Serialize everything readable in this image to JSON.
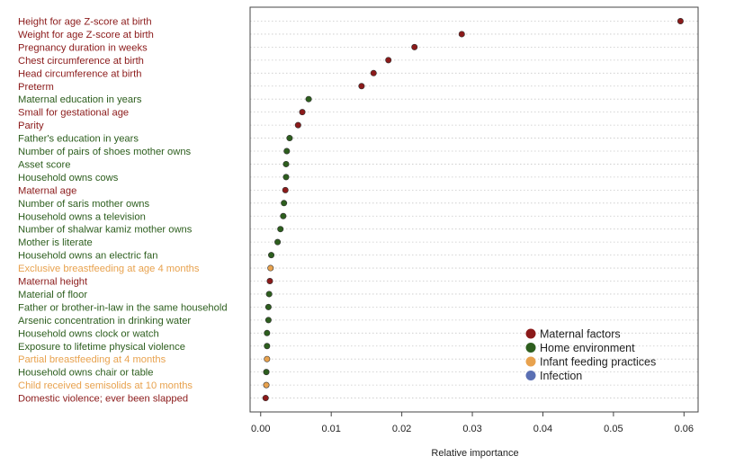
{
  "chart_data": {
    "type": "scatter",
    "title": "",
    "xlabel": "Relative importance",
    "ylabel": "",
    "xlim": [
      -0.0015,
      0.062
    ],
    "xticks": [
      0.0,
      0.01,
      0.02,
      0.03,
      0.04,
      0.05,
      0.06
    ],
    "xtick_labels": [
      "0.00",
      "0.01",
      "0.02",
      "0.03",
      "0.04",
      "0.05",
      "0.06"
    ],
    "grid": "horizontal dotted",
    "legend_position": "bottom-right",
    "colors": {
      "maternal": "#8b1a1a",
      "home": "#2d5e1e",
      "feeding": "#e8a24e",
      "infection": "#5a6fb3",
      "grid": "#c8c8c8",
      "axis": "#444444"
    },
    "legend": [
      {
        "key": "maternal",
        "label": "Maternal factors"
      },
      {
        "key": "home",
        "label": "Home environment"
      },
      {
        "key": "feeding",
        "label": "Infant feeding practices"
      },
      {
        "key": "infection",
        "label": "Infection"
      }
    ],
    "points": [
      {
        "label": "Height for age Z-score at birth",
        "value": 0.0595,
        "group": "maternal"
      },
      {
        "label": "Weight for age Z-score at birth",
        "value": 0.0285,
        "group": "maternal"
      },
      {
        "label": "Pregnancy duration in weeks",
        "value": 0.0218,
        "group": "maternal"
      },
      {
        "label": "Chest circumference at birth",
        "value": 0.0181,
        "group": "maternal"
      },
      {
        "label": "Head circumference at birth",
        "value": 0.016,
        "group": "maternal"
      },
      {
        "label": "Preterm",
        "value": 0.0143,
        "group": "maternal"
      },
      {
        "label": "Maternal education in years",
        "value": 0.0068,
        "group": "home"
      },
      {
        "label": "Small for gestational age",
        "value": 0.0059,
        "group": "maternal"
      },
      {
        "label": "Parity",
        "value": 0.0053,
        "group": "maternal"
      },
      {
        "label": "Father's education in years",
        "value": 0.0041,
        "group": "home"
      },
      {
        "label": "Number of pairs of shoes mother owns",
        "value": 0.0037,
        "group": "home"
      },
      {
        "label": "Asset score",
        "value": 0.0036,
        "group": "home"
      },
      {
        "label": "Household owns cows",
        "value": 0.0036,
        "group": "home"
      },
      {
        "label": "Maternal age",
        "value": 0.0035,
        "group": "maternal"
      },
      {
        "label": "Number of saris mother owns",
        "value": 0.0033,
        "group": "home"
      },
      {
        "label": "Household owns a television",
        "value": 0.0032,
        "group": "home"
      },
      {
        "label": "Number of shalwar  kamiz mother owns",
        "value": 0.0028,
        "group": "home"
      },
      {
        "label": "Mother is literate",
        "value": 0.0024,
        "group": "home"
      },
      {
        "label": "Household owns an electric fan",
        "value": 0.0015,
        "group": "home"
      },
      {
        "label": "Exclusive breastfeeding at age 4 months",
        "value": 0.0014,
        "group": "feeding"
      },
      {
        "label": "Maternal height",
        "value": 0.0013,
        "group": "maternal"
      },
      {
        "label": "Material of floor",
        "value": 0.0012,
        "group": "home"
      },
      {
        "label": "Father or brother-in-law in the same household",
        "value": 0.0011,
        "group": "home"
      },
      {
        "label": "Arsenic concentration in drinking water",
        "value": 0.0011,
        "group": "home"
      },
      {
        "label": "Household owns clock or watch",
        "value": 0.0009,
        "group": "home"
      },
      {
        "label": "Exposure to lifetime physical violence",
        "value": 0.0009,
        "group": "home"
      },
      {
        "label": "Partial breastfeeding at 4 months",
        "value": 0.0009,
        "group": "feeding"
      },
      {
        "label": "Household owns chair or table",
        "value": 0.0008,
        "group": "home"
      },
      {
        "label": "Child received semisolids at 10 months",
        "value": 0.0008,
        "group": "feeding"
      },
      {
        "label": "Domestic violence; ever been slapped",
        "value": 0.0007,
        "group": "maternal"
      }
    ]
  }
}
